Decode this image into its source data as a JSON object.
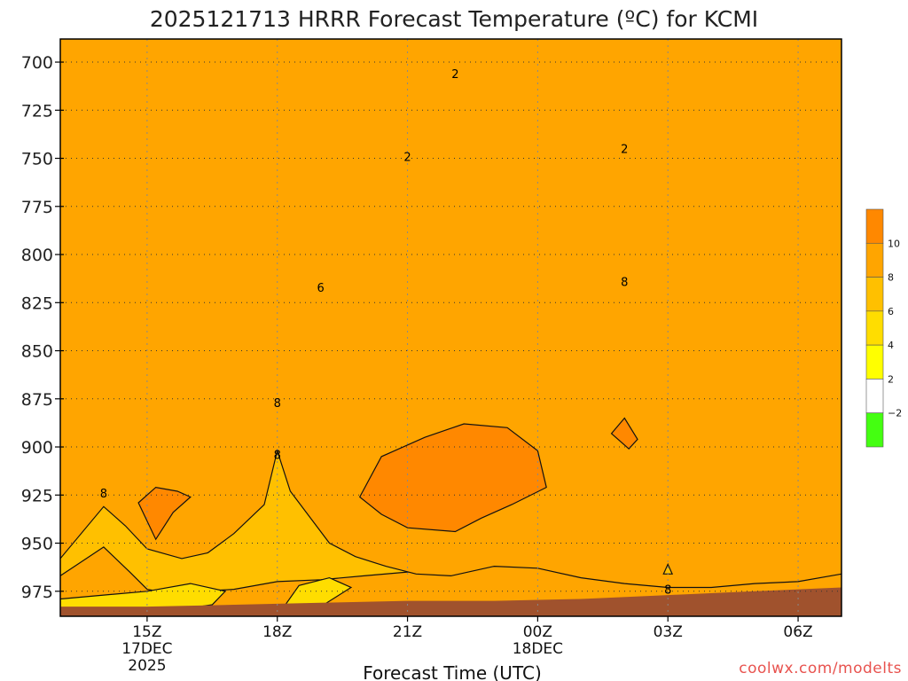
{
  "chart_data": {
    "type": "contour",
    "title": "2025121713 HRRR Forecast Temperature (ºC) for KCMI",
    "xlabel": "Forecast Time (UTC)",
    "ylabel": "",
    "credit": "coolwx.com/modelts",
    "x_ticks": [
      {
        "hour": 15,
        "lines": [
          "15Z",
          "17DEC",
          "2025"
        ]
      },
      {
        "hour": 18,
        "lines": [
          "18Z"
        ]
      },
      {
        "hour": 21,
        "lines": [
          "21Z"
        ]
      },
      {
        "hour": 24,
        "lines": [
          "00Z",
          "18DEC"
        ]
      },
      {
        "hour": 27,
        "lines": [
          "03Z"
        ]
      },
      {
        "hour": 30,
        "lines": [
          "06Z"
        ]
      }
    ],
    "xlim_hours": [
      13,
      31
    ],
    "ylim_hpa": [
      988,
      688
    ],
    "y_scale": "linear",
    "y_ticks": [
      700,
      725,
      750,
      775,
      800,
      825,
      850,
      875,
      900,
      925,
      950,
      975
    ],
    "grid": "dotted",
    "colorbar": {
      "bins": [
        {
          "color": "#44ff11",
          "lower": -4,
          "upper": -2
        },
        {
          "color": "#ffffff",
          "lower": -2,
          "upper": 2
        },
        {
          "color": "#ffff00",
          "lower": 2,
          "upper": 4
        },
        {
          "color": "#ffdd00",
          "lower": 4,
          "upper": 6
        },
        {
          "color": "#ffc000",
          "lower": 6,
          "upper": 8
        },
        {
          "color": "#ffa500",
          "lower": 8,
          "upper": 10
        },
        {
          "color": "#ff8800",
          "lower": 10,
          "upper": 12
        }
      ],
      "labels": [
        "10",
        "8",
        "6",
        "4",
        "2",
        "−2"
      ]
    },
    "contour_labels": [
      {
        "text": "2",
        "hour": 22.1,
        "p": 706
      },
      {
        "text": "2",
        "hour": 21.0,
        "p": 749
      },
      {
        "text": "2",
        "hour": 26.0,
        "p": 745
      },
      {
        "text": "6",
        "hour": 19.0,
        "p": 817
      },
      {
        "text": "8",
        "hour": 26.0,
        "p": 814
      },
      {
        "text": "8",
        "hour": 18.0,
        "p": 877
      },
      {
        "text": "8",
        "hour": 18.0,
        "p": 904
      },
      {
        "text": "8",
        "hour": 14.0,
        "p": 924
      },
      {
        "text": "8",
        "hour": 27.0,
        "p": 974
      }
    ],
    "surface_color": "#a0522d",
    "layers": [
      {
        "level": -2,
        "color": "#44ff11",
        "line": "dotted",
        "top": 690,
        "bottom": [
          [
            13.6,
            690
          ],
          [
            14.2,
            693
          ],
          [
            15.3,
            694
          ],
          [
            16.0,
            700
          ],
          [
            16.9,
            695
          ],
          [
            17.9,
            699
          ],
          [
            19.0,
            702
          ],
          [
            20.0,
            704
          ],
          [
            21.0,
            706
          ],
          [
            22.2,
            707
          ],
          [
            23.0,
            706
          ],
          [
            23.9,
            703
          ],
          [
            24.4,
            700
          ],
          [
            25.0,
            694
          ],
          [
            25.9,
            692
          ],
          [
            26.2,
            690
          ]
        ]
      },
      {
        "level": 0,
        "color": "#ffffff",
        "line": "magenta",
        "top": 688,
        "bottom": [
          [
            13,
            707
          ],
          [
            14,
            721
          ],
          [
            15,
            721
          ],
          [
            16,
            725
          ],
          [
            17,
            720
          ],
          [
            18,
            725
          ],
          [
            19,
            728
          ],
          [
            20,
            728
          ],
          [
            21,
            729
          ],
          [
            22,
            729
          ],
          [
            23,
            729
          ],
          [
            24,
            725
          ],
          [
            25,
            724
          ],
          [
            26,
            725
          ],
          [
            27,
            715
          ],
          [
            28,
            705
          ],
          [
            29,
            690
          ],
          [
            29.5,
            688
          ]
        ]
      },
      {
        "level": 2,
        "color": "#ffff00",
        "top": 688,
        "bottom": [
          [
            13,
            736
          ],
          [
            14,
            741
          ],
          [
            15,
            742
          ],
          [
            16,
            744
          ],
          [
            17,
            740
          ],
          [
            18,
            745
          ],
          [
            19,
            750
          ],
          [
            20,
            749
          ],
          [
            21,
            748
          ],
          [
            22,
            747
          ],
          [
            23,
            746
          ],
          [
            24,
            743
          ],
          [
            25,
            744
          ],
          [
            26,
            743
          ],
          [
            27,
            744
          ],
          [
            28,
            738
          ],
          [
            29,
            728
          ],
          [
            30,
            710
          ],
          [
            31,
            707
          ]
        ]
      },
      {
        "level": 4,
        "color": "#ffdd00",
        "top": 688,
        "bottom": [
          [
            13,
            766
          ],
          [
            14,
            771
          ],
          [
            15,
            774
          ],
          [
            16,
            773
          ],
          [
            17,
            771
          ],
          [
            18,
            775
          ],
          [
            19,
            782
          ],
          [
            20,
            777
          ],
          [
            21,
            776
          ],
          [
            22,
            775
          ],
          [
            23,
            773
          ],
          [
            24,
            771
          ],
          [
            25,
            771
          ],
          [
            26,
            771
          ],
          [
            27,
            771
          ],
          [
            28,
            765
          ],
          [
            29,
            758
          ],
          [
            30,
            752
          ],
          [
            31,
            752
          ]
        ]
      },
      {
        "level": 6,
        "color": "#ffc000",
        "top": 688,
        "bottom": [
          [
            13,
            794
          ],
          [
            14,
            804
          ],
          [
            15,
            805
          ],
          [
            16,
            804
          ],
          [
            17,
            802
          ],
          [
            18,
            808
          ],
          [
            19,
            816
          ],
          [
            20,
            804
          ],
          [
            21,
            802
          ],
          [
            22,
            801
          ],
          [
            23,
            799
          ],
          [
            24,
            797
          ],
          [
            25,
            794
          ],
          [
            26,
            792
          ],
          [
            27,
            787
          ],
          [
            27.5,
            786
          ],
          [
            28,
            792
          ],
          [
            28.5,
            800
          ],
          [
            28.8,
            820
          ],
          [
            29.0,
            850
          ],
          [
            29.8,
            868
          ],
          [
            31,
            866
          ]
        ]
      },
      {
        "level": 8,
        "color": "#ffa500",
        "top": 688,
        "bottom": [
          [
            13,
            839
          ],
          [
            13.4,
            840
          ],
          [
            14,
            837
          ],
          [
            14.7,
            834
          ],
          [
            15.8,
            832
          ],
          [
            16.6,
            835
          ],
          [
            17.2,
            840
          ],
          [
            17.6,
            850
          ],
          [
            17.8,
            862
          ],
          [
            18.1,
            873
          ],
          [
            18.6,
            866
          ],
          [
            19.3,
            858
          ],
          [
            20.0,
            845
          ],
          [
            21,
            843
          ],
          [
            22,
            841
          ],
          [
            23,
            838
          ],
          [
            24,
            830
          ],
          [
            25,
            825
          ],
          [
            26,
            819
          ],
          [
            26.8,
            817
          ],
          [
            27.3,
            824
          ],
          [
            27.3,
            840
          ],
          [
            27.1,
            856
          ],
          [
            26.9,
            872
          ],
          [
            27.0,
            892
          ],
          [
            27.3,
            906
          ],
          [
            28,
            908
          ],
          [
            29,
            910
          ],
          [
            30,
            911
          ],
          [
            31,
            895
          ]
        ]
      },
      {
        "level": 6,
        "color": "#ffc000",
        "top": 688,
        "bottom": [
          [
            13,
            967
          ],
          [
            14,
            952
          ],
          [
            14.6,
            965
          ],
          [
            15,
            974
          ],
          [
            15.5,
            976
          ],
          [
            17,
            974
          ],
          [
            18,
            970
          ],
          [
            19,
            969
          ],
          [
            20,
            967
          ],
          [
            21,
            965
          ],
          [
            22,
            963
          ],
          [
            23,
            962
          ],
          [
            24,
            961
          ],
          [
            25,
            962
          ],
          [
            26,
            963
          ],
          [
            27,
            964
          ],
          [
            28,
            962
          ],
          [
            29,
            959
          ],
          [
            30,
            955
          ],
          [
            31,
            953
          ]
        ]
      },
      {
        "level": 8,
        "color": "#ffa500",
        "top": 688,
        "bottom": [
          [
            13,
            958
          ],
          [
            14,
            931
          ],
          [
            14.5,
            941
          ],
          [
            15.0,
            953
          ],
          [
            15.8,
            958
          ],
          [
            16.4,
            955
          ],
          [
            17,
            945
          ],
          [
            17.7,
            930
          ],
          [
            18.0,
            902
          ],
          [
            18.3,
            923
          ],
          [
            18.8,
            938
          ],
          [
            19.2,
            950
          ],
          [
            19.8,
            957
          ],
          [
            20.5,
            962
          ],
          [
            21.2,
            966
          ],
          [
            22.0,
            967
          ],
          [
            23,
            962
          ],
          [
            24,
            963
          ],
          [
            25,
            968
          ],
          [
            26,
            971
          ],
          [
            27,
            973
          ],
          [
            28,
            973
          ],
          [
            29,
            971
          ],
          [
            30,
            970
          ],
          [
            31,
            966
          ]
        ]
      },
      {
        "level": 10,
        "color": "#ff8800",
        "line": "closed",
        "top": null,
        "bottom": [
          [
            19.9,
            926
          ],
          [
            20.4,
            905
          ],
          [
            21.4,
            895
          ],
          [
            22.3,
            888
          ],
          [
            23.3,
            890
          ],
          [
            24.0,
            902
          ],
          [
            24.2,
            921
          ],
          [
            23.4,
            930
          ],
          [
            22.7,
            937
          ],
          [
            22.1,
            944
          ],
          [
            21.0,
            942
          ],
          [
            20.4,
            935
          ],
          [
            19.9,
            926
          ]
        ]
      },
      {
        "level": 10,
        "color": "#ff8800",
        "line": "closed",
        "top": null,
        "bottom": [
          [
            14.8,
            929
          ],
          [
            15.2,
            921
          ],
          [
            15.7,
            923
          ],
          [
            16.0,
            926
          ],
          [
            15.6,
            934
          ],
          [
            15.2,
            948
          ],
          [
            14.8,
            929
          ]
        ]
      },
      {
        "level": 10,
        "color": "#ff8800",
        "line": "closed",
        "top": null,
        "bottom": [
          [
            25.7,
            893
          ],
          [
            26.0,
            885
          ],
          [
            26.3,
            896
          ],
          [
            26.1,
            901
          ],
          [
            25.7,
            893
          ]
        ]
      },
      {
        "level": 4,
        "color": "#ffdd00",
        "top": null,
        "bottom": [
          [
            13,
            979
          ],
          [
            14,
            977
          ],
          [
            15,
            975
          ],
          [
            16,
            971
          ],
          [
            16.8,
            975
          ],
          [
            16.5,
            982
          ],
          [
            15.0,
            987
          ],
          [
            13,
            987
          ]
        ]
      },
      {
        "level": 4,
        "color": "#ffdd00",
        "top": null,
        "bottom": [
          [
            18.0,
            988
          ],
          [
            19.0,
            983
          ],
          [
            19.7,
            973
          ],
          [
            19.2,
            968
          ],
          [
            18.5,
            972
          ],
          [
            18.0,
            988
          ]
        ]
      }
    ]
  }
}
